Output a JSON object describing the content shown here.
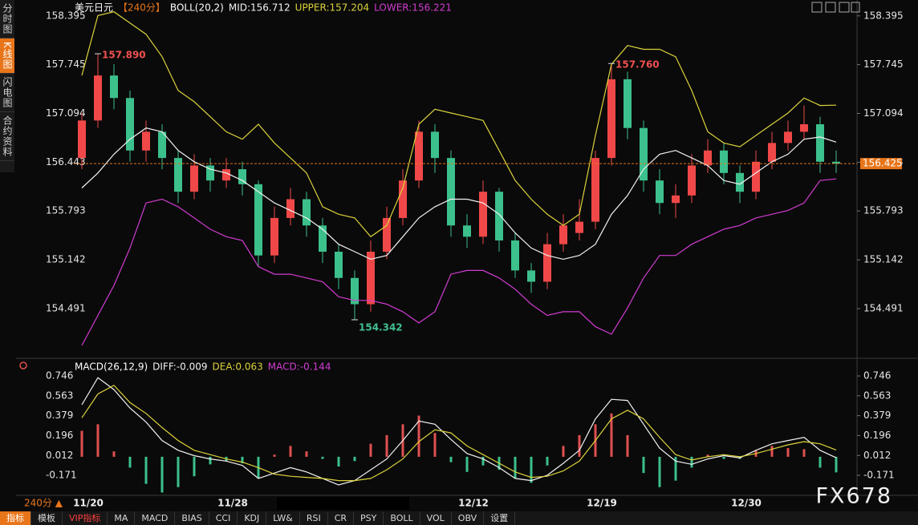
{
  "ui": {
    "sidebar_tabs": [
      "分时图",
      "K线图",
      "闪电图",
      "合约资料"
    ],
    "active_tab": 1,
    "timeframe_selector": "240分 ▲",
    "toolbar": [
      "指标",
      "模板",
      "VIP指标",
      "MA",
      "MACD",
      "BIAS",
      "CCI",
      "KDJ",
      "LW&",
      "RSI",
      "CR",
      "PSY",
      "BOLL",
      "VOL",
      "OBV",
      "设置"
    ],
    "watermark": "FX678"
  },
  "chart_data": [
    {
      "type": "candlestick",
      "title": "美元日元",
      "timeframe": "【240分】",
      "indicator": "BOLL(20,2)",
      "categories": [
        "11/20",
        null,
        null,
        null,
        null,
        null,
        null,
        null,
        null,
        "11/28",
        null,
        null,
        null,
        null,
        null,
        null,
        null,
        null,
        null,
        null,
        null,
        null,
        null,
        null,
        "12/12",
        null,
        null,
        null,
        null,
        null,
        null,
        null,
        "12/19",
        null,
        null,
        null,
        null,
        null,
        null,
        null,
        null,
        "12/30",
        null,
        null,
        null,
        null,
        null,
        null
      ],
      "ohlc": [
        [
          156.5,
          157.1,
          156.35,
          157.0
        ],
        [
          157.0,
          157.89,
          156.9,
          157.6
        ],
        [
          157.6,
          157.75,
          157.15,
          157.3
        ],
        [
          157.3,
          157.4,
          156.45,
          156.6
        ],
        [
          156.6,
          157.0,
          156.45,
          156.85
        ],
        [
          156.85,
          156.95,
          156.35,
          156.5
        ],
        [
          156.5,
          156.6,
          155.9,
          156.05
        ],
        [
          156.05,
          156.55,
          155.95,
          156.4
        ],
        [
          156.4,
          156.5,
          156.05,
          156.2
        ],
        [
          156.2,
          156.5,
          156.1,
          156.35
        ],
        [
          156.35,
          156.45,
          156.0,
          156.15
        ],
        [
          156.15,
          156.2,
          155.05,
          155.2
        ],
        [
          155.2,
          155.85,
          155.1,
          155.7
        ],
        [
          155.7,
          156.1,
          155.6,
          155.95
        ],
        [
          155.95,
          156.05,
          155.45,
          155.6
        ],
        [
          155.6,
          155.7,
          155.1,
          155.25
        ],
        [
          155.25,
          155.35,
          154.75,
          154.9
        ],
        [
          154.9,
          155.0,
          154.342,
          154.55
        ],
        [
          154.55,
          155.4,
          154.45,
          155.25
        ],
        [
          155.25,
          155.85,
          155.15,
          155.7
        ],
        [
          155.7,
          156.35,
          155.6,
          156.2
        ],
        [
          156.2,
          157.0,
          156.1,
          156.85
        ],
        [
          156.85,
          156.95,
          156.3,
          156.5
        ],
        [
          156.5,
          156.6,
          155.45,
          155.6
        ],
        [
          155.6,
          155.75,
          155.3,
          155.45
        ],
        [
          155.45,
          156.2,
          155.35,
          156.05
        ],
        [
          156.05,
          156.1,
          155.25,
          155.4
        ],
        [
          155.4,
          155.5,
          154.9,
          155.0
        ],
        [
          155.0,
          155.1,
          154.7,
          154.85
        ],
        [
          154.85,
          155.5,
          154.75,
          155.35
        ],
        [
          155.35,
          155.75,
          155.25,
          155.6
        ],
        [
          155.5,
          155.95,
          155.4,
          155.65
        ],
        [
          155.65,
          156.6,
          155.55,
          156.5
        ],
        [
          156.5,
          157.76,
          156.4,
          157.55
        ],
        [
          157.55,
          157.65,
          156.75,
          156.9
        ],
        [
          156.9,
          157.0,
          156.05,
          156.2
        ],
        [
          156.2,
          156.35,
          155.75,
          155.9
        ],
        [
          155.9,
          156.15,
          155.7,
          156.0
        ],
        [
          156.0,
          156.55,
          155.9,
          156.4
        ],
        [
          156.4,
          156.75,
          156.3,
          156.6
        ],
        [
          156.6,
          156.7,
          156.15,
          156.3
        ],
        [
          156.3,
          156.4,
          155.9,
          156.05
        ],
        [
          156.05,
          156.6,
          155.95,
          156.45
        ],
        [
          156.45,
          156.85,
          156.35,
          156.7
        ],
        [
          156.7,
          157.0,
          156.6,
          156.85
        ],
        [
          156.85,
          157.2,
          156.75,
          156.95
        ],
        [
          156.95,
          157.05,
          156.3,
          156.45
        ],
        [
          156.45,
          156.6,
          156.3,
          156.425
        ]
      ],
      "up_color": "#f04848",
      "down_color": "#3cc08c",
      "series": [
        {
          "name": "MID:156.712",
          "color": "#f2f2f2",
          "values": [
            156.1,
            156.3,
            156.55,
            156.75,
            156.9,
            156.85,
            156.6,
            156.45,
            156.35,
            156.3,
            156.2,
            156.05,
            155.9,
            155.8,
            155.7,
            155.55,
            155.35,
            155.25,
            155.15,
            155.2,
            155.45,
            155.7,
            155.85,
            155.95,
            155.95,
            155.9,
            155.75,
            155.5,
            155.3,
            155.2,
            155.15,
            155.2,
            155.35,
            155.75,
            156.0,
            156.35,
            156.55,
            156.6,
            156.5,
            156.4,
            156.2,
            156.15,
            156.3,
            156.45,
            156.55,
            156.75,
            156.78,
            156.712
          ]
        },
        {
          "name": "UPPER:157.204",
          "color": "#dcd23c",
          "values": [
            157.6,
            158.4,
            158.45,
            158.3,
            158.15,
            157.85,
            157.4,
            157.25,
            157.05,
            156.85,
            156.75,
            156.95,
            156.7,
            156.5,
            156.3,
            155.85,
            155.75,
            155.7,
            155.45,
            155.6,
            156.1,
            156.95,
            157.15,
            157.1,
            157.05,
            157.0,
            156.6,
            156.2,
            155.95,
            155.75,
            155.6,
            155.75,
            156.8,
            157.75,
            158.0,
            157.95,
            157.95,
            157.85,
            157.4,
            156.85,
            156.7,
            156.65,
            156.8,
            156.95,
            157.1,
            157.3,
            157.2,
            157.204
          ]
        },
        {
          "name": "LOWER:156.221",
          "color": "#d23cd2",
          "values": [
            154.0,
            154.4,
            154.8,
            155.3,
            155.9,
            155.95,
            155.85,
            155.7,
            155.55,
            155.45,
            155.4,
            155.05,
            154.95,
            154.95,
            154.9,
            154.85,
            154.65,
            154.6,
            154.6,
            154.55,
            154.45,
            154.3,
            154.45,
            154.95,
            155.0,
            155.0,
            154.9,
            154.75,
            154.55,
            154.4,
            154.45,
            154.45,
            154.25,
            154.15,
            154.5,
            154.9,
            155.2,
            155.2,
            155.35,
            155.45,
            155.55,
            155.6,
            155.7,
            155.75,
            155.8,
            155.9,
            156.2,
            156.221
          ]
        }
      ],
      "annotations": [
        {
          "value": 157.89,
          "label": "157.890",
          "index": 1,
          "color": "#f05050"
        },
        {
          "value": 157.76,
          "label": "157.760",
          "index": 33,
          "color": "#f05050"
        },
        {
          "value": 154.342,
          "label": "154.342",
          "index": 17,
          "color": "#40c090"
        }
      ],
      "last_price": 156.425,
      "last_price_color": "#e8751a",
      "ylim": [
        153.85,
        158.5
      ],
      "yticks": [
        158.395,
        157.745,
        157.094,
        156.443,
        155.793,
        155.142,
        154.491
      ]
    },
    {
      "type": "macd",
      "title": "MACD(26,12,9)",
      "series": [
        {
          "name": "DIFF:-0.009",
          "color": "#f2f2f2",
          "values": [
            0.48,
            0.73,
            0.62,
            0.45,
            0.32,
            0.15,
            0.06,
            0.01,
            -0.02,
            -0.04,
            -0.08,
            -0.2,
            -0.15,
            -0.1,
            -0.14,
            -0.2,
            -0.26,
            -0.22,
            -0.12,
            -0.02,
            0.15,
            0.33,
            0.3,
            0.16,
            0.03,
            -0.02,
            -0.1,
            -0.2,
            -0.22,
            -0.17,
            -0.06,
            0.06,
            0.35,
            0.53,
            0.52,
            0.3,
            0.08,
            -0.04,
            -0.07,
            -0.02,
            0.01,
            -0.01,
            0.06,
            0.12,
            0.15,
            0.18,
            0.06,
            -0.009
          ]
        },
        {
          "name": "DEA:0.063",
          "color": "#dcd23c",
          "values": [
            0.36,
            0.58,
            0.66,
            0.5,
            0.4,
            0.27,
            0.15,
            0.06,
            0.02,
            -0.02,
            -0.05,
            -0.1,
            -0.16,
            -0.18,
            -0.19,
            -0.2,
            -0.22,
            -0.22,
            -0.2,
            -0.12,
            -0.02,
            0.14,
            0.25,
            0.22,
            0.1,
            0.02,
            -0.06,
            -0.14,
            -0.19,
            -0.18,
            -0.13,
            -0.04,
            0.15,
            0.35,
            0.43,
            0.35,
            0.18,
            0.02,
            -0.03,
            0,
            0.02,
            0,
            0.03,
            0.07,
            0.11,
            0.14,
            0.12,
            0.063
          ]
        }
      ],
      "histogram": {
        "name": "MACD:-0.144",
        "color": "#d23cd2",
        "up_color": "#e05050",
        "down_color": "#3cc08c",
        "values": [
          0.24,
          0.3,
          0.05,
          -0.1,
          -0.25,
          -0.33,
          -0.28,
          -0.18,
          -0.07,
          -0.04,
          -0.06,
          -0.2,
          0.02,
          0.1,
          0.05,
          -0.02,
          -0.09,
          -0.04,
          0.12,
          0.2,
          0.3,
          0.38,
          0.22,
          -0.05,
          -0.14,
          -0.08,
          -0.12,
          -0.2,
          -0.24,
          -0.08,
          0.1,
          0.2,
          0.3,
          0.4,
          0.2,
          -0.15,
          -0.28,
          -0.22,
          -0.1,
          0.02,
          -0.02,
          -0.02,
          0.06,
          0.1,
          0.08,
          0.07,
          -0.1,
          -0.144
        ]
      },
      "ylim": [
        -0.356,
        0.813
      ],
      "yticks": [
        0.746,
        0.563,
        0.379,
        0.196,
        0.012,
        -0.171
      ]
    }
  ]
}
